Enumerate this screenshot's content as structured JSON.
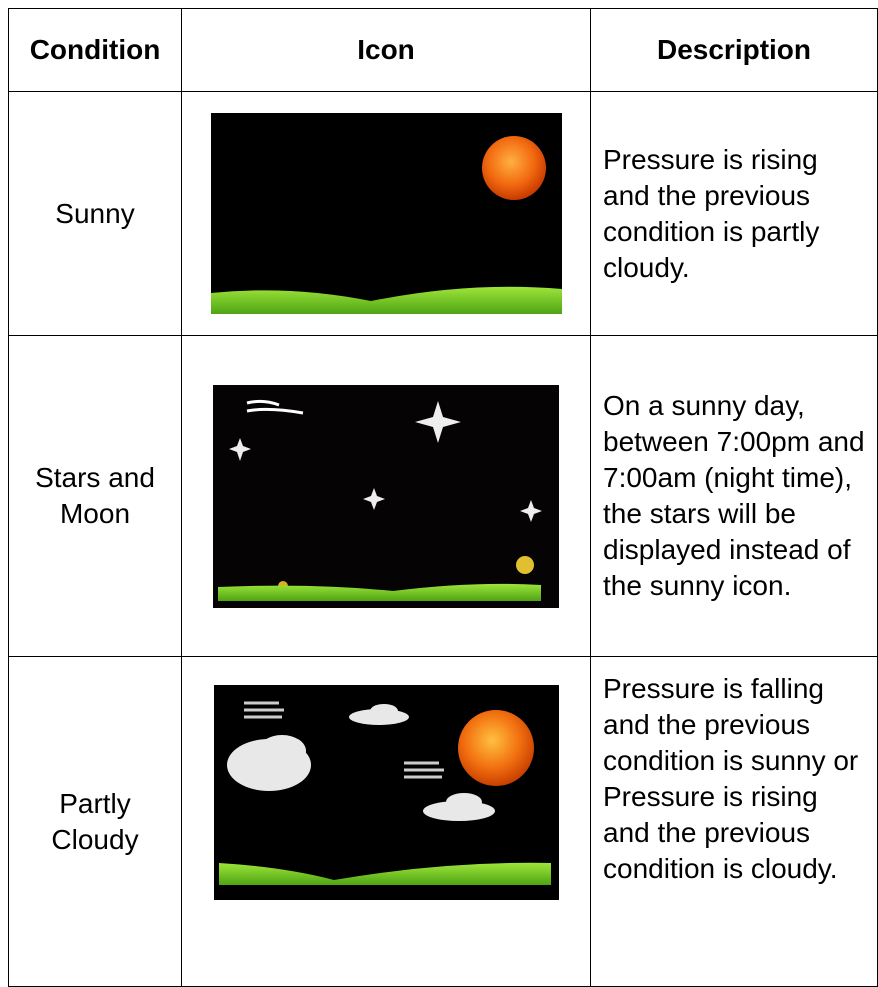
{
  "table": {
    "header": [
      "Condition",
      "Icon",
      "Description"
    ],
    "rows": [
      {
        "condition": "Sunny",
        "description": "Pressure is rising and the previous condition is partly cloudy."
      },
      {
        "condition": "Stars and Moon",
        "description": "On a sunny day, between 7:00pm and 7:00am (night time), the stars will be displayed instead of the sunny icon."
      },
      {
        "condition": "Partly Cloudy",
        "description": "Pressure is falling and the previous condition is sunny or Pressure is rising and the previous condition is cloudy."
      }
    ]
  }
}
